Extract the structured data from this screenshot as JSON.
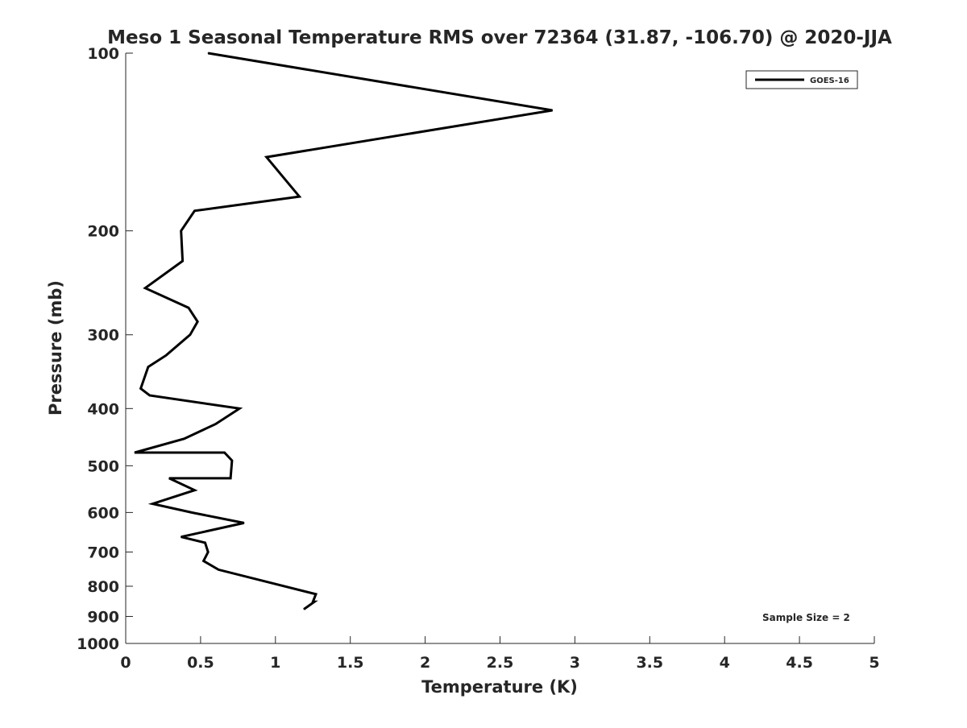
{
  "chart_data": {
    "type": "line",
    "title": "Meso 1 Seasonal Temperature RMS over 72364 (31.87, -106.70) @ 2020-JJA",
    "xlabel": "Temperature (K)",
    "ylabel": "Pressure (mb)",
    "xlim": [
      0,
      5
    ],
    "ylim": [
      1000,
      100
    ],
    "y_scale": "log",
    "y_reversed": true,
    "x_ticks": [
      0,
      0.5,
      1,
      1.5,
      2,
      2.5,
      3,
      3.5,
      4,
      4.5,
      5
    ],
    "x_tick_labels": [
      "0",
      "0.5",
      "1",
      "1.5",
      "2",
      "2.5",
      "3",
      "3.5",
      "4",
      "4.5",
      "5"
    ],
    "y_ticks": [
      100,
      200,
      300,
      400,
      500,
      600,
      700,
      800,
      900,
      1000
    ],
    "y_tick_labels": [
      "100",
      "200",
      "300",
      "400",
      "500",
      "600",
      "700",
      "800",
      "900",
      "1000"
    ],
    "grid": false,
    "legend_position": "top-right",
    "annotation": "Sample Size = 2",
    "series": [
      {
        "name": "GOES-16",
        "color": "#000000",
        "x": [
          0.55,
          2.85,
          0.94,
          1.16,
          0.46,
          0.37,
          0.38,
          0.13,
          0.42,
          0.48,
          0.43,
          0.27,
          0.15,
          0.1,
          0.16,
          0.76,
          0.6,
          0.39,
          0.06,
          0.66,
          0.71,
          0.7,
          0.29,
          0.46,
          0.18,
          0.44,
          0.79,
          0.37,
          0.53,
          0.55,
          0.52,
          0.62,
          1.27,
          1.25,
          1.26,
          1.19
        ],
        "y": [
          100,
          125,
          150,
          175,
          185,
          200,
          225,
          250,
          270,
          285,
          300,
          325,
          340,
          370,
          380,
          400,
          425,
          450,
          475,
          475,
          490,
          525,
          525,
          550,
          580,
          600,
          625,
          660,
          675,
          700,
          725,
          750,
          825,
          850,
          850,
          875
        ]
      }
    ]
  }
}
